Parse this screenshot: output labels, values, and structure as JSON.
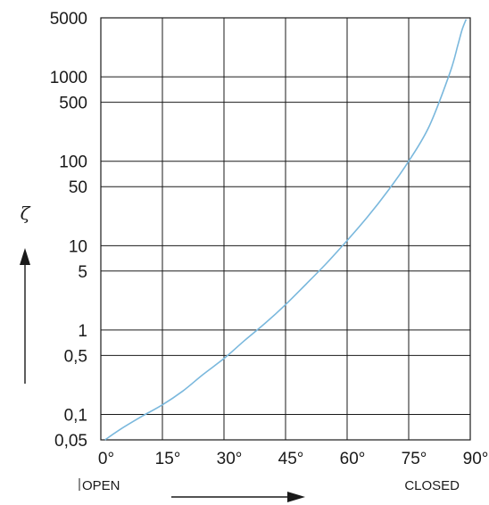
{
  "chart_data": {
    "type": "line",
    "ylabel": "ζ",
    "xlabel": "",
    "y_scale": "log",
    "xlim": [
      0,
      90
    ],
    "ylim": [
      0.05,
      5000
    ],
    "x_ticks": [
      {
        "value": 0,
        "label": "0°"
      },
      {
        "value": 15,
        "label": "15°"
      },
      {
        "value": 30,
        "label": "30°"
      },
      {
        "value": 45,
        "label": "45°"
      },
      {
        "value": 60,
        "label": "60°"
      },
      {
        "value": 75,
        "label": "75°"
      },
      {
        "value": 90,
        "label": "90°"
      }
    ],
    "y_ticks": [
      {
        "value": 0.05,
        "label": "0,05"
      },
      {
        "value": 0.1,
        "label": "0,1"
      },
      {
        "value": 0.5,
        "label": "0,5"
      },
      {
        "value": 1,
        "label": "1"
      },
      {
        "value": 5,
        "label": "5"
      },
      {
        "value": 10,
        "label": "10"
      },
      {
        "value": 50,
        "label": "50"
      },
      {
        "value": 100,
        "label": "100"
      },
      {
        "value": 500,
        "label": "500"
      },
      {
        "value": 1000,
        "label": "1000"
      },
      {
        "value": 5000,
        "label": "5000"
      }
    ],
    "annotations": {
      "left": "OPEN",
      "right": "CLOSED"
    },
    "series": [
      {
        "color": "#7ab8dd",
        "x": [
          1,
          5,
          10,
          15,
          20,
          25,
          30,
          35,
          40,
          45,
          50,
          55,
          60,
          65,
          70,
          75,
          80,
          85,
          87,
          88,
          89
        ],
        "y": [
          0.05,
          0.068,
          0.095,
          0.13,
          0.19,
          0.3,
          0.46,
          0.75,
          1.2,
          2.0,
          3.5,
          6.2,
          11.5,
          22,
          45,
          100,
          260,
          1100,
          2400,
          3600,
          4800
        ]
      }
    ],
    "grid": true,
    "legend": "none"
  }
}
